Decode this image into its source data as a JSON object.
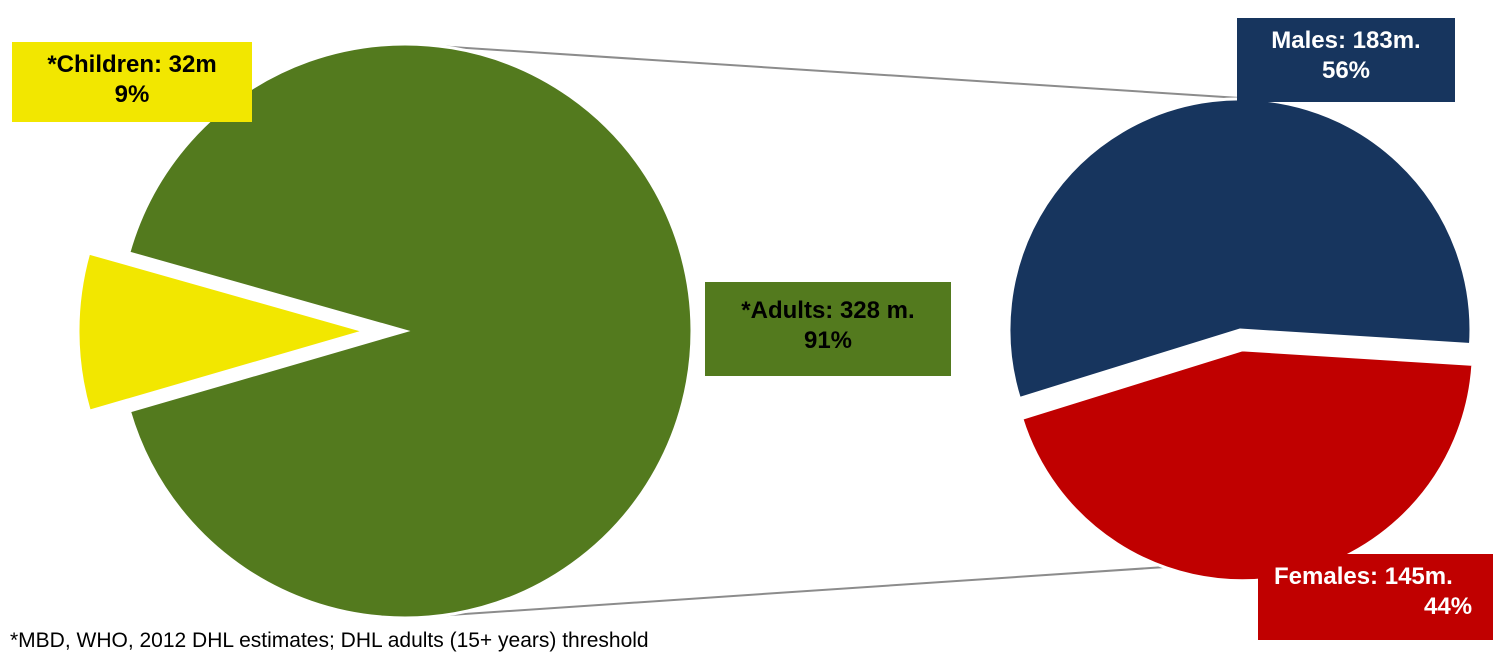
{
  "chart_data": [
    {
      "type": "pie",
      "slices": [
        {
          "label": "*Adults: 328 m.",
          "pct_label": "91%",
          "value": 328,
          "percent": 91,
          "color": "#537a1e"
        },
        {
          "label": "*Children: 32m",
          "pct_label": "9%",
          "value": 32,
          "percent": 9,
          "color": "#f2e700",
          "exploded": true
        }
      ]
    },
    {
      "type": "pie",
      "slices": [
        {
          "label": "Males: 183m.",
          "pct_label": "56%",
          "value": 183,
          "percent": 56,
          "color": "#17355e"
        },
        {
          "label": "Females: 145m.",
          "pct_label": "44%",
          "value": 145,
          "percent": 44,
          "color": "#c00000"
        }
      ]
    }
  ],
  "labels": {
    "children": {
      "line1": "*Children: 32m",
      "line2": "9%"
    },
    "adults": {
      "line1": "*Adults: 328 m.",
      "line2": "91%"
    },
    "males": {
      "line1": "Males: 183m.",
      "line2": "56%"
    },
    "females": {
      "line1": "Females: 145m.",
      "line2": "44%"
    }
  },
  "footnote": "*MBD, WHO, 2012 DHL estimates; DHL adults (15+ years) threshold"
}
